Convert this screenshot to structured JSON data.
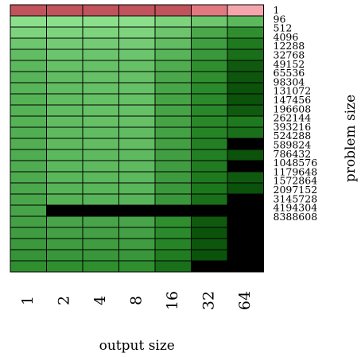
{
  "chart_data": {
    "type": "heatmap",
    "xlabel": "output size",
    "ylabel": "problem size",
    "x_categories": [
      "1",
      "2",
      "4",
      "8",
      "16",
      "32",
      "64"
    ],
    "y_categories": [
      "1",
      "96",
      "512",
      "4096",
      "12288",
      "32768",
      "49152",
      "65536",
      "98304",
      "131072",
      "147456",
      "196608",
      "262144",
      "393216",
      "524288",
      "589824",
      "786432",
      "1048576",
      "1179648",
      "1572864",
      "2097152",
      "3145728",
      "4194304",
      "8388608"
    ],
    "cell_colors": [
      [
        "#c0535b",
        "#c0535b",
        "#c0535b",
        "#c0535b",
        "#c0535b",
        "#e07a80",
        "#f5a6ad"
      ],
      [
        "#8ce08c",
        "#8ce08c",
        "#8ce08c",
        "#8ce08c",
        "#7dd47d",
        "#6ec66e",
        "#5cb85c"
      ],
      [
        "#7dd47d",
        "#7dd47d",
        "#7dd47d",
        "#7dd47d",
        "#6cc46c",
        "#4aa84a",
        "#2f8f2f"
      ],
      [
        "#6ec66e",
        "#75cb75",
        "#75cb75",
        "#75cb75",
        "#62bc62",
        "#3f9e3f",
        "#1f7a1f"
      ],
      [
        "#62bc62",
        "#6cc46c",
        "#6cc46c",
        "#6cc46c",
        "#58b458",
        "#3a983a",
        "#1a6f1a"
      ],
      [
        "#5cb85c",
        "#66c066",
        "#66c066",
        "#66c066",
        "#4fac4f",
        "#2f8f2f",
        "#0f5a0f"
      ],
      [
        "#58b458",
        "#62bc62",
        "#66c066",
        "#66c066",
        "#4aa84a",
        "#2f8f2f",
        "#0d560d"
      ],
      [
        "#58b458",
        "#62bc62",
        "#66c066",
        "#66c066",
        "#48a648",
        "#2b8a2b",
        "#0b520b"
      ],
      [
        "#55b255",
        "#62bc62",
        "#66c066",
        "#66c066",
        "#46a446",
        "#2b8a2b",
        "#0b520b"
      ],
      [
        "#55b255",
        "#62bc62",
        "#66c066",
        "#66c066",
        "#46a446",
        "#2a882a",
        "#0f5a0f"
      ],
      [
        "#55b255",
        "#62bc62",
        "#66c066",
        "#66c066",
        "#46a446",
        "#2a882a",
        "#1f7a1f"
      ],
      [
        "#52ae52",
        "#5fba5f",
        "#62bc62",
        "#62bc62",
        "#44a244",
        "#268426",
        "#1a6f1a"
      ],
      [
        "#52ae52",
        "#5fba5f",
        "#62bc62",
        "#62bc62",
        "#42a042",
        "#237f23",
        "#000000"
      ],
      [
        "#50ac50",
        "#5cb85c",
        "#5fba5f",
        "#5fba5f",
        "#429e42",
        "#237f23",
        "#0b520b"
      ],
      [
        "#50ac50",
        "#5cb85c",
        "#5fba5f",
        "#5fba5f",
        "#409c40",
        "#217c21",
        "#000000"
      ],
      [
        "#4eaa4e",
        "#5ab65a",
        "#5cb85c",
        "#5cb85c",
        "#3e9a3e",
        "#1f7a1f",
        "#0f5a0f"
      ],
      [
        "#4ca84c",
        "#58b458",
        "#5ab65a",
        "#5ab65a",
        "#3c983c",
        "#1d781d",
        "#0b520b"
      ],
      [
        "#4aa64a",
        "#55b255",
        "#58b458",
        "#58b458",
        "#3a963a",
        "#1a6f1a",
        "#000000"
      ],
      [
        "#48a448",
        "#000000",
        "#000000",
        "#000000",
        "#000000",
        "#000000",
        "#000000"
      ],
      [
        "#44a044",
        "#48a448",
        "#48a448",
        "#48a448",
        "#2f8f2f",
        "#0f5a0f",
        "#000000"
      ],
      [
        "#409c40",
        "#44a044",
        "#44a044",
        "#44a044",
        "#2b8a2b",
        "#0b520b",
        "#000000"
      ],
      [
        "#3c983c",
        "#409c40",
        "#409c40",
        "#409c40",
        "#268426",
        "#0d560d",
        "#000000"
      ],
      [
        "#379337",
        "#3a963a",
        "#3a963a",
        "#3a963a",
        "#217c21",
        "#0b520b",
        "#000000"
      ],
      [
        "#2f8f2f",
        "#2f8f2f",
        "#2f8f2f",
        "#2f8f2f",
        "#1a6f1a",
        "#000000",
        "#000000"
      ]
    ]
  }
}
